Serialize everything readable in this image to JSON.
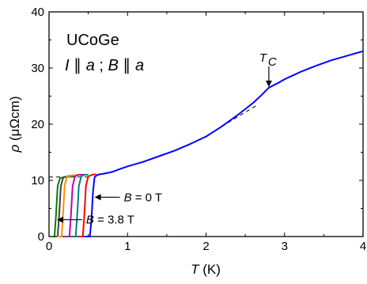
{
  "chart_data": {
    "type": "line",
    "xlabel": {
      "symbol": "T",
      "unit": " (K)"
    },
    "ylabel": {
      "symbol": "ρ",
      "unit": " (μΩcm)"
    },
    "xlim": [
      0,
      4
    ],
    "ylim": [
      0,
      40
    ],
    "xticks": [
      "0",
      "1",
      "2",
      "3",
      "4"
    ],
    "yticks": [
      "0",
      "10",
      "20",
      "30",
      "40"
    ],
    "sample_label": "UCoGe",
    "config_label": {
      "I": "I",
      "a1": "a",
      "B": "B",
      "a2": "a"
    },
    "annotations": {
      "tc": {
        "symbol": "T",
        "sub": "C",
        "at": {
          "x": 2.8,
          "y": 26.5
        }
      },
      "b0": {
        "symbol": "B",
        "text": " = 0 T",
        "at": {
          "x": 0.58,
          "y": 7.0
        }
      },
      "b38": {
        "symbol": "B",
        "text": " = 3.8 T",
        "at": {
          "x": 0.1,
          "y": 3.0
        }
      }
    },
    "series": [
      {
        "color": "#0000ff",
        "x": [
          0.45,
          0.52,
          0.54,
          0.56,
          0.58,
          0.62,
          0.7,
          0.8,
          0.9,
          1.0,
          1.2,
          1.4,
          1.6,
          1.8,
          2.0,
          2.2,
          2.4,
          2.6,
          2.7,
          2.8,
          2.9,
          3.0,
          3.2,
          3.4,
          3.6,
          3.8,
          4.0
        ],
        "y": [
          0.0,
          0.0,
          3.0,
          8.0,
          10.6,
          11.0,
          11.2,
          11.5,
          12.0,
          12.5,
          13.3,
          14.3,
          15.3,
          16.5,
          17.8,
          19.6,
          21.6,
          23.8,
          25.1,
          26.5,
          27.2,
          28.0,
          29.3,
          30.4,
          31.4,
          32.2,
          33.0
        ]
      },
      {
        "color": "#ff0000",
        "x": [
          0.38,
          0.43,
          0.45,
          0.47,
          0.5,
          0.55,
          0.6
        ],
        "y": [
          0.0,
          0.0,
          4.0,
          9.0,
          10.7,
          11.0,
          11.1
        ]
      },
      {
        "color": "#008080",
        "x": [
          0.3,
          0.34,
          0.36,
          0.38,
          0.41,
          0.45,
          0.5
        ],
        "y": [
          0.0,
          0.0,
          4.0,
          9.0,
          10.7,
          11.0,
          11.0
        ]
      },
      {
        "color": "#c000c0",
        "x": [
          0.22,
          0.26,
          0.28,
          0.3,
          0.33,
          0.38,
          0.45
        ],
        "y": [
          0.0,
          0.0,
          4.0,
          9.0,
          10.7,
          11.0,
          11.0
        ]
      },
      {
        "color": "#ff8c00",
        "x": [
          0.1,
          0.16,
          0.18,
          0.2,
          0.23,
          0.3,
          0.4
        ],
        "y": [
          0.0,
          0.0,
          4.5,
          9.2,
          10.7,
          10.9,
          11.0
        ]
      },
      {
        "color": "#404040",
        "x": [
          0.06,
          0.11,
          0.13,
          0.15,
          0.18,
          0.25,
          0.35
        ],
        "y": [
          0.0,
          0.0,
          4.0,
          9.0,
          10.5,
          10.8,
          10.9
        ]
      },
      {
        "color": "#008000",
        "x": [
          0.03,
          0.07,
          0.09,
          0.11,
          0.14,
          0.2,
          0.3
        ],
        "y": [
          0.0,
          0.0,
          4.0,
          9.0,
          10.4,
          10.6,
          10.7
        ]
      }
    ],
    "guides": [
      {
        "style": "dashed",
        "x": [
          0.0,
          0.5
        ],
        "y": [
          10.6,
          10.6
        ]
      },
      {
        "style": "dashed",
        "x": [
          2.2,
          2.65
        ],
        "y": [
          19.6,
          23.4
        ]
      }
    ],
    "grid": false
  }
}
